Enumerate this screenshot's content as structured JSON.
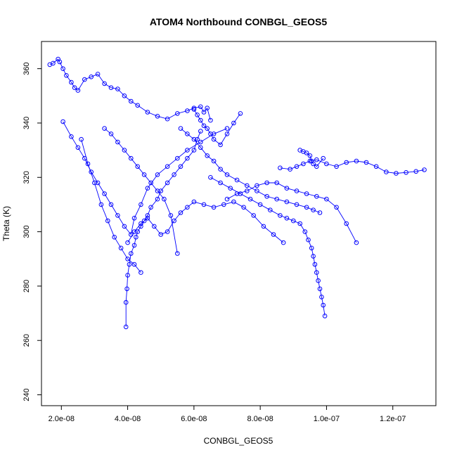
{
  "chart_data": {
    "type": "line",
    "title": "ATOM4 Northbound CONBGL_GEOS5",
    "xlabel": "CONBGL_GEOS5",
    "ylabel": "Theta (K)",
    "xlim": [
      1.4e-08,
      1.33e-07
    ],
    "ylim": [
      236,
      370
    ],
    "x_ticks": [
      2e-08,
      4e-08,
      6e-08,
      8e-08,
      1e-07,
      1.2e-07
    ],
    "x_tick_labels": [
      "2.0e-08",
      "4.0e-08",
      "6.0e-08",
      "8.0e-08",
      "1.0e-07",
      "1.2e-07"
    ],
    "y_ticks": [
      240,
      260,
      280,
      300,
      320,
      340,
      360
    ],
    "y_tick_labels": [
      "240",
      "260",
      "280",
      "300",
      "320",
      "340",
      "360"
    ],
    "grid": false,
    "color": "#0000ff",
    "marker": "open-circle",
    "series": [
      {
        "x": [
          1.65e-08,
          1.75e-08,
          1.9e-08,
          1.95e-08,
          2.05e-08,
          2.15e-08,
          2.3e-08,
          2.4e-08,
          2.5e-08,
          2.7e-08,
          2.9e-08,
          3.1e-08,
          3.3e-08,
          3.5e-08,
          3.7e-08,
          3.9e-08,
          4.1e-08,
          4.3e-08,
          4.6e-08,
          4.9e-08,
          5.2e-08,
          5.5e-08,
          5.8e-08,
          6e-08,
          6.2e-08,
          6.3e-08,
          6.4e-08,
          6.5e-08
        ],
        "y": [
          361.5,
          362,
          363.5,
          362.5,
          360,
          357.5,
          355,
          353,
          352,
          356,
          357,
          358,
          354.5,
          353,
          352.5,
          350,
          348,
          346.5,
          344,
          342.5,
          341.5,
          343.5,
          344.5,
          345.5,
          346,
          344,
          345.5,
          341
        ]
      },
      {
        "x": [
          6.2e-08,
          6.1e-08,
          6e-08,
          5.8e-08,
          5.6e-08,
          5.4e-08,
          5.2e-08,
          5e-08,
          4.9e-08,
          4.7e-08,
          4.6e-08,
          4.5e-08,
          4.4e-08,
          4.3e-08,
          4.25e-08,
          4.2e-08,
          4.1e-08,
          4.05e-08,
          4e-08,
          3.98e-08,
          3.95e-08,
          3.95e-08
        ],
        "y": [
          337,
          334,
          330,
          327,
          324,
          321,
          318,
          315,
          312,
          309,
          306,
          304,
          302,
          300,
          298,
          295,
          292,
          288,
          284,
          279,
          274,
          265
        ]
      },
      {
        "x": [
          2.05e-08,
          2.3e-08,
          2.5e-08,
          2.7e-08,
          2.9e-08,
          3.1e-08,
          3.3e-08,
          3.5e-08,
          3.7e-08,
          3.9e-08,
          4.1e-08,
          4.2e-08,
          4.4e-08,
          4.6e-08,
          4.9e-08,
          5.2e-08,
          5.5e-08,
          5.8e-08,
          6.2e-08,
          6.6e-08,
          7e-08
        ],
        "y": [
          340.5,
          335,
          331,
          327,
          322,
          318,
          314,
          310,
          306,
          302,
          299,
          305,
          310,
          316,
          321,
          324,
          327,
          330,
          333,
          336,
          338
        ]
      },
      {
        "x": [
          5.6e-08,
          5.8e-08,
          6e-08,
          6.2e-08,
          6.4e-08,
          6.6e-08,
          6.8e-08,
          7e-08,
          7.3e-08,
          7.6e-08,
          7.9e-08,
          8.2e-08,
          8.5e-08,
          8.8e-08,
          9.1e-08,
          9.4e-08,
          9.6e-08,
          9.8e-08
        ],
        "y": [
          338,
          336,
          334,
          331,
          328,
          326,
          323,
          321,
          319,
          317,
          315,
          313,
          312,
          311,
          310,
          309,
          308,
          307
        ]
      },
      {
        "x": [
          6.5e-08,
          6.8e-08,
          7.1e-08,
          7.4e-08,
          7.7e-08,
          8e-08,
          8.3e-08,
          8.6e-08,
          8.8e-08,
          9e-08,
          9.2e-08,
          9.35e-08,
          9.45e-08,
          9.55e-08,
          9.6e-08,
          9.65e-08,
          9.7e-08,
          9.75e-08,
          9.8e-08,
          9.85e-08,
          9.9e-08,
          9.95e-08
        ],
        "y": [
          320,
          318,
          316,
          314,
          312,
          310,
          308,
          306,
          305,
          304,
          303,
          300,
          297,
          294,
          291,
          288,
          285,
          282,
          279,
          276,
          273,
          269
        ]
      },
      {
        "x": [
          8.6e-08,
          8.9e-08,
          9.1e-08,
          9.3e-08,
          9.5e-08,
          9.7e-08,
          1e-07,
          1.03e-07,
          1.06e-07,
          1.09e-07,
          1.12e-07,
          1.15e-07,
          1.18e-07,
          1.21e-07,
          1.24e-07,
          1.27e-07,
          1.295e-07
        ],
        "y": [
          323.5,
          323,
          324,
          325,
          326,
          326.5,
          325,
          324,
          325.5,
          326,
          325.5,
          324,
          322,
          321.5,
          321.8,
          322.2,
          322.8
        ]
      },
      {
        "x": [
          9.2e-08,
          9.3e-08,
          9.4e-08,
          9.5e-08,
          9.55e-08,
          9.6e-08,
          9.7e-08,
          9.9e-08
        ],
        "y": [
          330,
          329.5,
          329,
          328,
          326,
          325,
          324,
          327
        ]
      },
      {
        "x": [
          6e-08,
          6.1e-08,
          6.2e-08,
          6.3e-08,
          6.4e-08,
          6.5e-08,
          6.6e-08,
          6.8e-08,
          7e-08,
          7.2e-08,
          7.4e-08
        ],
        "y": [
          345,
          343,
          341,
          339,
          338,
          336,
          334,
          332,
          336,
          340,
          343.5
        ]
      },
      {
        "x": [
          4e-08,
          4.2e-08,
          4.4e-08,
          4.6e-08,
          4.8e-08,
          5e-08,
          5.2e-08,
          5.4e-08,
          5.6e-08,
          5.8e-08,
          6e-08,
          6.3e-08,
          6.6e-08,
          6.9e-08,
          7.2e-08,
          7.5e-08,
          7.8e-08,
          8.1e-08,
          8.4e-08,
          8.7e-08
        ],
        "y": [
          296,
          300,
          303,
          305,
          302,
          299,
          300,
          304,
          307,
          309,
          311,
          310,
          309,
          310,
          311,
          309,
          306,
          302,
          299,
          296
        ]
      },
      {
        "x": [
          3.3e-08,
          3.5e-08,
          3.7e-08,
          3.9e-08,
          4.1e-08,
          4.3e-08,
          4.5e-08,
          4.7e-08,
          4.9e-08,
          5.1e-08,
          5.3e-08,
          5.5e-08
        ],
        "y": [
          338,
          336,
          333,
          330,
          327,
          324,
          321,
          318,
          315,
          312,
          306,
          292
        ]
      },
      {
        "x": [
          7e-08,
          7.3e-08,
          7.6e-08,
          7.9e-08,
          8.2e-08,
          8.5e-08,
          8.8e-08,
          9.1e-08,
          9.4e-08,
          9.7e-08,
          1e-07,
          1.03e-07,
          1.06e-07,
          1.09e-07
        ],
        "y": [
          312,
          314,
          315,
          317,
          318,
          318,
          316,
          315,
          314,
          313,
          312,
          309,
          303,
          296
        ]
      },
      {
        "x": [
          2.6e-08,
          2.8e-08,
          3e-08,
          3.2e-08,
          3.4e-08,
          3.6e-08,
          3.8e-08,
          4e-08,
          4.2e-08,
          4.4e-08
        ],
        "y": [
          334,
          325,
          318,
          310,
          304,
          298,
          294,
          290,
          288,
          285
        ]
      }
    ]
  }
}
